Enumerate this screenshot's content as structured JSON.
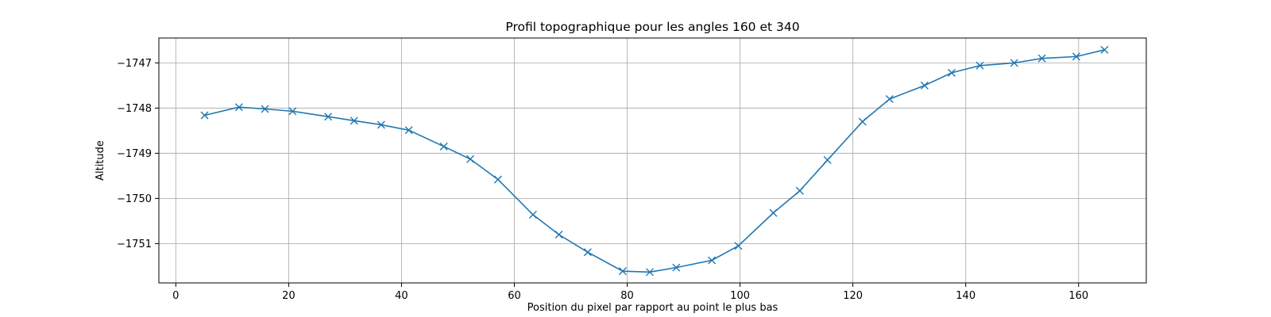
{
  "chart_data": {
    "type": "line",
    "title": "Profil topographique pour les angles 160 et 340",
    "xlabel": "Position du pixel par rapport au point le plus bas",
    "ylabel": "Altitude",
    "xlim": [
      -3,
      172
    ],
    "ylim": [
      -1751.87,
      -1746.45
    ],
    "xticks": [
      0,
      20,
      40,
      60,
      80,
      100,
      120,
      140,
      160
    ],
    "xtick_labels": [
      "0",
      "20",
      "40",
      "60",
      "80",
      "100",
      "120",
      "140",
      "160"
    ],
    "yticks": [
      -1751,
      -1750,
      -1749,
      -1748,
      -1747
    ],
    "ytick_labels": [
      "−1751",
      "−1750",
      "−1749",
      "−1748",
      "−1747"
    ],
    "grid": true,
    "marker": "x",
    "color": "#1f77b4",
    "x": [
      5.1,
      11.2,
      15.8,
      20.7,
      27.0,
      31.6,
      36.4,
      41.3,
      47.5,
      52.2,
      57.1,
      63.3,
      67.9,
      73.0,
      79.2,
      84.0,
      88.7,
      95.0,
      99.7,
      105.9,
      110.6,
      115.5,
      121.7,
      126.5,
      132.7,
      137.5,
      142.5,
      148.6,
      153.5,
      159.6,
      164.6
    ],
    "y": [
      -1748.16,
      -1747.98,
      -1748.02,
      -1748.07,
      -1748.19,
      -1748.28,
      -1748.37,
      -1748.49,
      -1748.85,
      -1749.13,
      -1749.58,
      -1750.36,
      -1750.8,
      -1751.19,
      -1751.61,
      -1751.63,
      -1751.53,
      -1751.37,
      -1751.05,
      -1750.32,
      -1749.83,
      -1749.15,
      -1748.3,
      -1747.8,
      -1747.5,
      -1747.22,
      -1747.06,
      -1747.0,
      -1746.9,
      -1746.86,
      -1746.71
    ]
  }
}
